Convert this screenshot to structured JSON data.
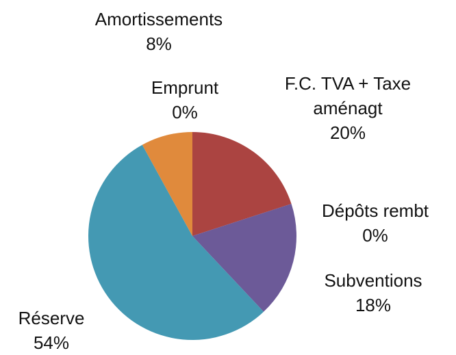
{
  "chart_data": {
    "type": "pie",
    "categories": [
      "F.C. TVA + Taxe aménagt",
      "Dépôts rembt",
      "Subventions",
      "Réserve",
      "Amortissements",
      "Emprunt"
    ],
    "values": [
      20,
      0,
      18,
      54,
      8,
      0
    ],
    "value_labels": [
      "20%",
      "0%",
      "18%",
      "54%",
      "8%",
      "0%"
    ],
    "colors": [
      "#ab4441",
      "#6c5a98",
      "#6c5a98",
      "#4499b3",
      "#e08a3c",
      "#e08a3c"
    ]
  }
}
